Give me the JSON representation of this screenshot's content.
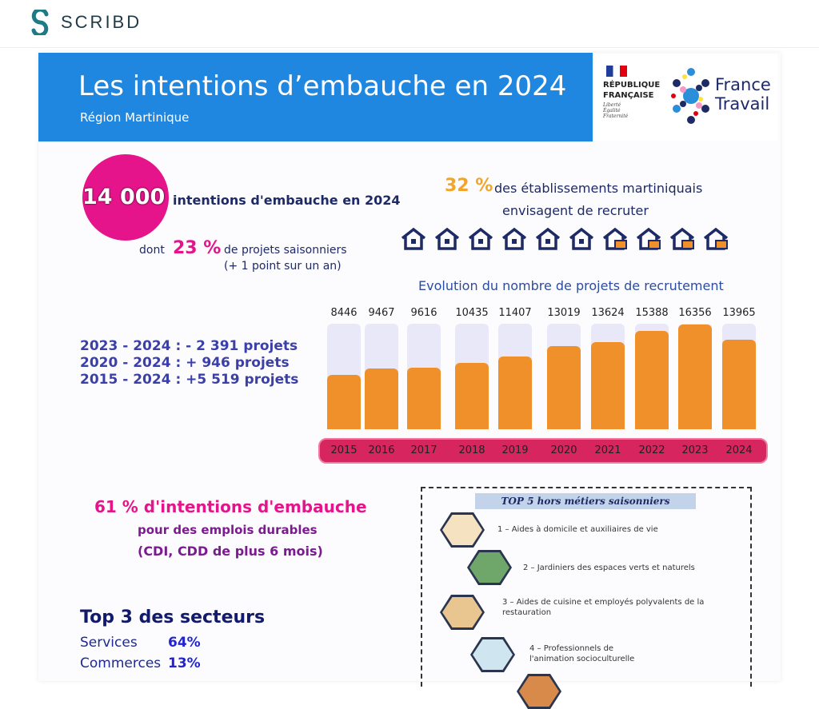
{
  "app": {
    "name": "SCRIBD"
  },
  "header": {
    "title": "Les intentions  d’embauche en 2024",
    "subtitle": "Région Martinique"
  },
  "logos": {
    "rf": "RÉPUBLIQUE FRANÇAISE",
    "rf_motto": "Liberté Égalité Fraternité",
    "ft": "France Travail"
  },
  "kpi": {
    "total": "14 000",
    "total_label": "intentions d'embauche en  2024",
    "dont": "dont",
    "seasonal_pct": "23 %",
    "seasonal_label": "de projets saisonniers",
    "seasonal_note": "(+ 1 point sur un an)",
    "estab_pct": "32 %",
    "estab_label1": "des établissements martiniquais",
    "estab_label2": "envisagent de recruter"
  },
  "houses": {
    "total": 10,
    "recruiting": 4
  },
  "evolution": [
    "2023 - 2024 : - 2 391 projets",
    "2020 - 2024 : + 946 projets",
    "2015 - 2024 : +5 519 projets"
  ],
  "chart_data": {
    "type": "bar",
    "title": "Evolution du nombre de projets de recrutement",
    "categories": [
      "2015",
      "2016",
      "2017",
      "2018",
      "2019",
      "2020",
      "2021",
      "2022",
      "2023",
      "2024"
    ],
    "values": [
      8446,
      9467,
      9616,
      10435,
      11407,
      13019,
      13624,
      15388,
      16356,
      13965
    ],
    "labels": [
      "8446",
      "9467",
      "9616",
      "10435",
      "11407",
      "13019",
      "13624",
      "15388",
      "16356",
      "13965"
    ],
    "ylim": [
      0,
      16500
    ],
    "bar_color": "#f0902a",
    "bg_color": "#e8e8f8",
    "xlabel": "",
    "ylabel": ""
  },
  "durable": {
    "line1": "61 % d'intentions d'embauche",
    "line2": "pour des emplois durables",
    "line3": "(CDI, CDD de plus 6 mois)"
  },
  "sectors": {
    "title": "Top 3 des secteurs",
    "items": [
      {
        "name": "Services",
        "pct": "64%"
      },
      {
        "name": "Commerces",
        "pct": "13%"
      }
    ]
  },
  "top5": {
    "title": "TOP 5 hors métiers saisonniers",
    "items": [
      "1 – Aides à domicile et auxiliaires de vie",
      "2 – Jardiniers des espaces verts et naturels",
      "3 – Aides de cuisine et employés polyvalents de la restauration",
      "4 – Professionnels de l'animation socioculturelle"
    ]
  }
}
